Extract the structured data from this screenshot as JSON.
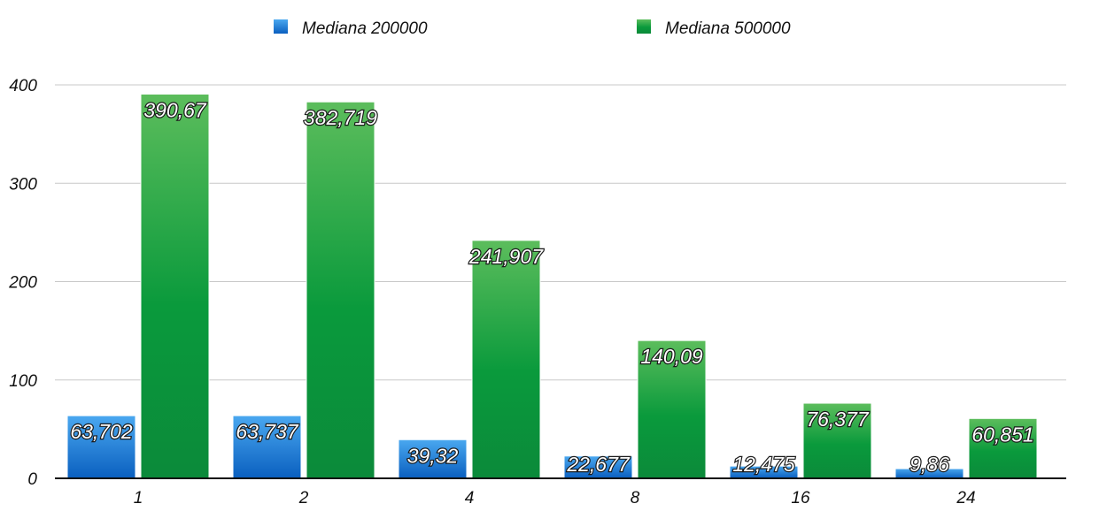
{
  "chart_data": {
    "type": "bar",
    "categories": [
      "1",
      "2",
      "4",
      "8",
      "16",
      "24"
    ],
    "series": [
      {
        "name": "Mediana 200000",
        "values": [
          63.702,
          63.737,
          39.32,
          22.677,
          12.475,
          9.86
        ],
        "labels": [
          "63,702",
          "63,737",
          "39,32",
          "22,677",
          "12,475",
          "9,86"
        ],
        "color": "#1f7fd8"
      },
      {
        "name": "Mediana 500000",
        "values": [
          390.67,
          382.719,
          241.907,
          140.09,
          76.377,
          60.851
        ],
        "labels": [
          "390,67",
          "382,719",
          "241,907",
          "140,09",
          "76,377",
          "60,851"
        ],
        "color": "#1fa045"
      }
    ],
    "yticks": [
      "0",
      "100",
      "200",
      "300",
      "400"
    ],
    "ylim": [
      0,
      400
    ],
    "grid": true,
    "legend_position": "top-center"
  }
}
